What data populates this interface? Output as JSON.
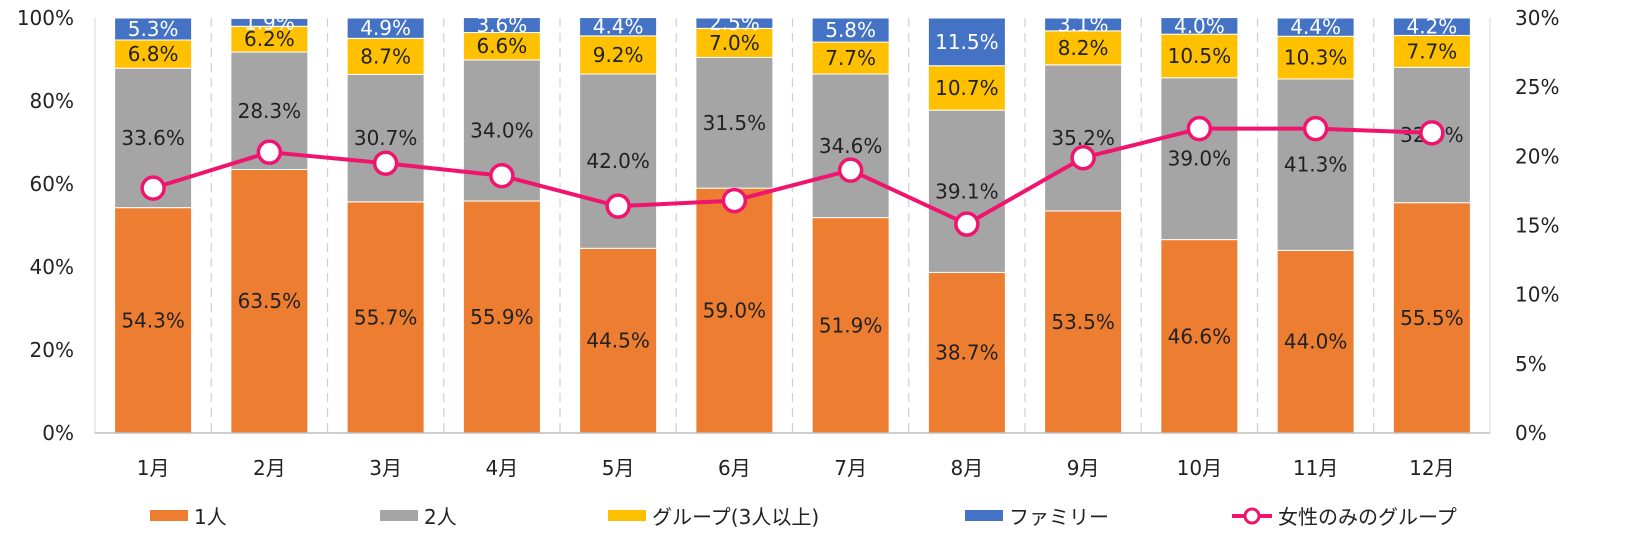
{
  "chart_data": {
    "type": "bar",
    "stacked": true,
    "percent_stacked": true,
    "categories": [
      "1月",
      "2月",
      "3月",
      "4月",
      "5月",
      "6月",
      "7月",
      "8月",
      "9月",
      "10月",
      "11月",
      "12月"
    ],
    "series": [
      {
        "name": "1人",
        "color": "#ED7D31",
        "values": [
          54.3,
          63.5,
          55.7,
          55.9,
          44.5,
          59.0,
          51.9,
          38.7,
          53.5,
          46.6,
          44.0,
          55.5
        ]
      },
      {
        "name": "2人",
        "color": "#A5A5A5",
        "values": [
          33.6,
          28.3,
          30.7,
          34.0,
          42.0,
          31.5,
          34.6,
          39.1,
          35.2,
          39.0,
          41.3,
          32.6
        ]
      },
      {
        "name": "グループ(3人以上)",
        "color": "#FFC000",
        "values": [
          6.8,
          6.2,
          8.7,
          6.6,
          9.2,
          7.0,
          7.7,
          10.7,
          8.2,
          10.5,
          10.3,
          7.7
        ]
      },
      {
        "name": "ファミリー",
        "color": "#4472C4",
        "values": [
          5.3,
          1.9,
          4.9,
          3.6,
          4.4,
          2.5,
          5.8,
          11.5,
          3.1,
          4.0,
          4.4,
          4.2
        ]
      }
    ],
    "line_series": {
      "name": "女性のみのグループ",
      "color": "#F0146E",
      "axis": "right",
      "values": [
        17.7,
        20.3,
        19.5,
        18.6,
        16.4,
        16.8,
        19.0,
        15.1,
        19.9,
        22.0,
        22.0,
        21.7
      ]
    },
    "y_left": {
      "min": 0,
      "max": 100,
      "step": 20,
      "ticks": [
        "0%",
        "20%",
        "40%",
        "60%",
        "80%",
        "100%"
      ]
    },
    "y_right": {
      "min": 0,
      "max": 30,
      "step": 5,
      "ticks": [
        "0%",
        "5%",
        "10%",
        "15%",
        "20%",
        "25%",
        "30%"
      ]
    },
    "gridlines": "vertical-dashed",
    "legend_position": "bottom",
    "label_suffix": "%"
  }
}
